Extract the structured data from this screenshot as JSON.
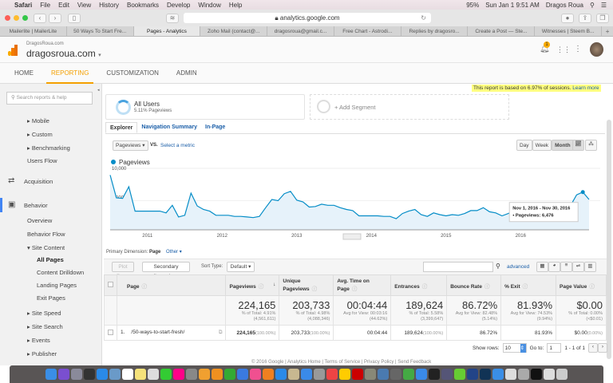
{
  "menubar": {
    "app": "Safari",
    "items": [
      "File",
      "Edit",
      "View",
      "History",
      "Bookmarks",
      "Develop",
      "Window",
      "Help"
    ],
    "battery": "95%",
    "datetime": "Sun Jan 1  9:51 AM",
    "user": "Dragos Roua"
  },
  "browser": {
    "url": "analytics.google.com",
    "tabs": [
      {
        "label": "Mailerlite | MailerLite",
        "active": false
      },
      {
        "label": "50 Ways To Start Fre...",
        "active": false
      },
      {
        "label": "Pages - Analytics",
        "active": true
      },
      {
        "label": "Zoho Mail (contact@...",
        "active": false
      },
      {
        "label": "dragosroua@gmail.c...",
        "active": false
      },
      {
        "label": "Free Chart - Astrodi...",
        "active": false
      },
      {
        "label": "Replies by dragosro...",
        "active": false
      },
      {
        "label": "Create a Post — Ste...",
        "active": false
      },
      {
        "label": "Witnesses | Steem B...",
        "active": false
      }
    ],
    "new_tab": "+"
  },
  "ga": {
    "account": "DragosRoua.com",
    "property": "dragosroua.com",
    "notification_count": "1",
    "nav": [
      {
        "label": "HOME"
      },
      {
        "label": "REPORTING",
        "active": true
      },
      {
        "label": "CUSTOMIZATION"
      },
      {
        "label": "ADMIN"
      }
    ],
    "accent": "#f4a000"
  },
  "sidebar": {
    "search_placeholder": "Search reports & help",
    "items": [
      {
        "label": "▸ Mobile",
        "level": 2
      },
      {
        "label": "▸ Custom",
        "level": 2
      },
      {
        "label": "▸ Benchmarking",
        "level": 2
      },
      {
        "label": "Users Flow",
        "level": 1
      },
      {
        "label": "Acquisition",
        "level": 0,
        "icon": "acquisition-icon"
      },
      {
        "label": "Behavior",
        "level": 0,
        "icon": "behavior-icon",
        "active": true
      },
      {
        "label": "Overview",
        "level": 1
      },
      {
        "label": "Behavior Flow",
        "level": 1
      },
      {
        "label": "▾ Site Content",
        "level": 2
      },
      {
        "label": "All Pages",
        "level": 3,
        "active": true
      },
      {
        "label": "Content Drilldown",
        "level": 3
      },
      {
        "label": "Landing Pages",
        "level": 3
      },
      {
        "label": "Exit Pages",
        "level": 3
      },
      {
        "label": "▸ Site Speed",
        "level": 2
      },
      {
        "label": "▸ Site Search",
        "level": 2
      },
      {
        "label": "▸ Events",
        "level": 2
      },
      {
        "label": "▸ Publisher",
        "level": 2
      }
    ]
  },
  "notice": {
    "text": "This report is based on 6.97% of sessions.",
    "link": "Learn more"
  },
  "segments": {
    "segment_name": "All Users",
    "segment_sub": "5.11% Pageviews",
    "add": "+ Add Segment"
  },
  "report_tabs": [
    {
      "label": "Explorer",
      "active": true
    },
    {
      "label": "Navigation Summary"
    },
    {
      "label": "In-Page"
    }
  ],
  "chart_controls": {
    "metric": "Pageviews",
    "vs": "VS.",
    "select_metric": "Select a metric",
    "periods": [
      "Day",
      "Week",
      "Month"
    ],
    "selected_period": "Month"
  },
  "chart_data": {
    "type": "area",
    "legend": "Pageviews",
    "color": "#058dc7",
    "ylim": [
      0,
      10000
    ],
    "yticks": [
      "10,000",
      "5,000"
    ],
    "xtick_labels": [
      "2011",
      "2012",
      "2013",
      "2014",
      "2015",
      "2016"
    ],
    "x": [
      "2010-07",
      "2010-08",
      "2010-09",
      "2010-10",
      "2010-11",
      "2010-12",
      "2011-01",
      "2011-02",
      "2011-03",
      "2011-04",
      "2011-05",
      "2011-06",
      "2011-07",
      "2011-08",
      "2011-09",
      "2011-10",
      "2011-11",
      "2011-12",
      "2012-01",
      "2012-02",
      "2012-03",
      "2012-04",
      "2012-05",
      "2012-06",
      "2012-07",
      "2012-08",
      "2012-09",
      "2012-10",
      "2012-11",
      "2012-12",
      "2013-01",
      "2013-02",
      "2013-03",
      "2013-04",
      "2013-05",
      "2013-06",
      "2013-07",
      "2013-08",
      "2013-09",
      "2013-10",
      "2013-11",
      "2013-12",
      "2014-01",
      "2014-02",
      "2014-03",
      "2014-04",
      "2014-05",
      "2014-06",
      "2014-07",
      "2014-08",
      "2014-09",
      "2014-10",
      "2014-11",
      "2014-12",
      "2015-01",
      "2015-02",
      "2015-03",
      "2015-04",
      "2015-05",
      "2015-06",
      "2015-07",
      "2015-08",
      "2015-09",
      "2015-10",
      "2015-11",
      "2015-12",
      "2016-01",
      "2016-02",
      "2016-03",
      "2016-04",
      "2016-05",
      "2016-06",
      "2016-07",
      "2016-08",
      "2016-09",
      "2016-10",
      "2016-11",
      "2016-12"
    ],
    "values": [
      9400,
      5500,
      5400,
      7400,
      3200,
      3200,
      3200,
      3200,
      3200,
      2900,
      4200,
      2200,
      2500,
      6300,
      4100,
      3500,
      3200,
      2500,
      2500,
      2500,
      2300,
      2300,
      2200,
      2100,
      2300,
      3800,
      5200,
      5000,
      6200,
      6600,
      5100,
      4800,
      3900,
      4000,
      4400,
      4200,
      4200,
      3800,
      3500,
      3300,
      2400,
      2400,
      2400,
      2400,
      2300,
      2300,
      1900,
      2800,
      3200,
      3500,
      2600,
      2300,
      2900,
      2600,
      2400,
      2600,
      2500,
      2800,
      3300,
      3300,
      3800,
      3100,
      2900,
      2400,
      2800,
      3200,
      2800,
      2900,
      2800,
      3100,
      3100,
      3300,
      3200,
      3900,
      4100,
      6000,
      6476,
      5200
    ],
    "tooltip": {
      "date": "Nov 1, 2016 - Nov 30, 2016",
      "label": "Pageviews: 6,476"
    }
  },
  "dimension": {
    "label": "Primary Dimension:",
    "value": "Page",
    "other": "Other ▾"
  },
  "table_controls": {
    "plot_rows": "Plot Rows",
    "secondary": "Secondary dimension",
    "sort_type_label": "Sort Type:",
    "sort_type": "Default",
    "advanced": "advanced"
  },
  "table": {
    "headers": [
      "Page",
      "Pageviews",
      "Unique Pageviews",
      "Avg. Time on Page",
      "Entrances",
      "Bounce Rate",
      "% Exit",
      "Page Value"
    ],
    "totals": [
      {
        "v": "224,165",
        "s1": "% of Total: 4.91%",
        "s2": "(4,561,611)"
      },
      {
        "v": "203,733",
        "s1": "% of Total: 4.98%",
        "s2": "(4,088,346)"
      },
      {
        "v": "00:04:44",
        "s1": "Avg for View: 00:03:16",
        "s2": "(44.62%)"
      },
      {
        "v": "189,624",
        "s1": "% of Total: 5.58%",
        "s2": "(3,399,647)"
      },
      {
        "v": "86.72%",
        "s1": "Avg for View: 82.48%",
        "s2": "(5.14%)"
      },
      {
        "v": "81.93%",
        "s1": "Avg for View: 74.53%",
        "s2": "(9.94%)"
      },
      {
        "v": "$0.00",
        "s1": "% of Total: 0.00%",
        "s2": "(<$0.01)"
      }
    ],
    "rows": [
      {
        "index": "1.",
        "page": "/50-ways-to-start-fresh/",
        "pageviews": "224,165",
        "pageviews_pct": "(100.00%)",
        "unique": "203,733",
        "unique_pct": "(100.00%)",
        "avg_time": "00:04:44",
        "entrances": "189,624",
        "entrances_pct": "(100.00%)",
        "bounce": "86.72%",
        "exit": "81.93%",
        "value": "$0.00",
        "value_pct": "(0.00%)"
      }
    ]
  },
  "pagination": {
    "show_rows_label": "Show rows:",
    "show_rows": "10",
    "goto_label": "Go to:",
    "goto": "1",
    "range": "1 - 1 of 1"
  },
  "footer": "© 2016 Google | Analytics Home | Terms of Service | Privacy Policy | Send Feedback",
  "dock": [
    {
      "name": "finder",
      "c": "#3a8ee6"
    },
    {
      "name": "siri",
      "c": "#7a4fd0"
    },
    {
      "name": "launchpad",
      "c": "#8a8a9a"
    },
    {
      "name": "dashboard",
      "c": "#333"
    },
    {
      "name": "safari",
      "c": "#2a8ae8"
    },
    {
      "name": "preview",
      "c": "#6a9ac8"
    },
    {
      "name": "calendar",
      "c": "#fff"
    },
    {
      "name": "notes",
      "c": "#f5e27a"
    },
    {
      "name": "photos-app",
      "c": "#ddd"
    },
    {
      "name": "facetime",
      "c": "#3c3"
    },
    {
      "name": "photos",
      "c": "#f08"
    },
    {
      "name": "system-prefs",
      "c": "#888"
    },
    {
      "name": "pages",
      "c": "#f0a030"
    },
    {
      "name": "sublime",
      "c": "#f09020"
    },
    {
      "name": "numbers",
      "c": "#3a3"
    },
    {
      "name": "keynote",
      "c": "#3a7ae0"
    },
    {
      "name": "itunes",
      "c": "#f05090"
    },
    {
      "name": "ibooks",
      "c": "#f08020"
    },
    {
      "name": "app-store",
      "c": "#2a8ae8"
    },
    {
      "name": "archive",
      "c": "#c8b890"
    },
    {
      "name": "xcode",
      "c": "#3a8ae8"
    },
    {
      "name": "scrivener",
      "c": "#999"
    },
    {
      "name": "chrome",
      "c": "#e44"
    },
    {
      "name": "cyberduck",
      "c": "#fc0"
    },
    {
      "name": "filezilla",
      "c": "#c00"
    },
    {
      "name": "gimp",
      "c": "#887"
    },
    {
      "name": "image-capture",
      "c": "#4a7ab0"
    },
    {
      "name": "automator",
      "c": "#666"
    },
    {
      "name": "sourcetree",
      "c": "#4a4"
    },
    {
      "name": "simplenote",
      "c": "#3a8ae8"
    },
    {
      "name": "kindle",
      "c": "#222"
    },
    {
      "name": "ethereum",
      "c": "#557"
    },
    {
      "name": "mindnode",
      "c": "#6c3"
    },
    {
      "name": "affinity",
      "c": "#248"
    },
    {
      "name": "jx",
      "c": "#135"
    },
    {
      "name": "v2",
      "c": "#3a8ee6"
    },
    {
      "name": "spiral",
      "c": "#ddd"
    },
    {
      "name": "textedit",
      "c": "#aaa"
    },
    {
      "name": "terminal",
      "c": "#111"
    },
    {
      "name": "downloads",
      "c": "#ddd"
    },
    {
      "name": "trash",
      "c": "#ccc"
    }
  ]
}
